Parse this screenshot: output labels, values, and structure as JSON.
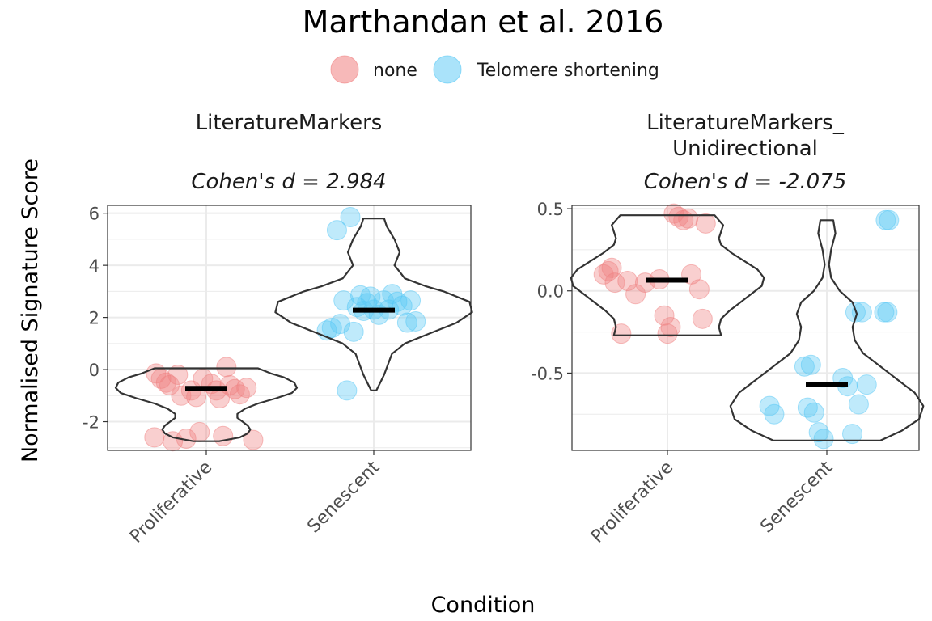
{
  "figure": {
    "title": "Marthandan et al. 2016",
    "xlabel": "Condition",
    "ylabel": "Normalised Signature Score"
  },
  "legend": {
    "position": "top",
    "entries": [
      {
        "label": "none",
        "color": "#F08080"
      },
      {
        "label": "Telomere shortening",
        "color": "#56C8F5"
      }
    ]
  },
  "colors": {
    "none": "#F08080",
    "Telomere shortening": "#56C8F5",
    "violin_stroke": "#333333",
    "median_bar": "#000000",
    "grid": "#EBEBEB",
    "panel_border": "#333333"
  },
  "chart_data": [
    {
      "type": "scatter",
      "facet_title": [
        "LiteratureMarkers"
      ],
      "subtitle": "Cohen's d = 2.984",
      "categories": [
        "Proliferative",
        "Senescent"
      ],
      "ylim": [
        -3.1,
        6.3
      ],
      "yticks": [
        6,
        4,
        2,
        0,
        -2
      ],
      "ytick_labels": [
        "6",
        "4",
        "2",
        "0",
        "-2"
      ],
      "grid": true,
      "medians": [
        -0.72,
        2.28
      ],
      "violins": [
        {
          "category": "Proliferative",
          "ymin": -2.75,
          "ymax": 0.05,
          "profile": [
            [
              -2.75,
              0.05
            ],
            [
              -2.6,
              0.13
            ],
            [
              -2.45,
              0.16
            ],
            [
              -2.3,
              0.17
            ],
            [
              -2.15,
              0.16
            ],
            [
              -2.0,
              0.14
            ],
            [
              -1.85,
              0.12
            ],
            [
              -1.7,
              0.12
            ],
            [
              -1.5,
              0.15
            ],
            [
              -1.3,
              0.2
            ],
            [
              -1.1,
              0.27
            ],
            [
              -0.9,
              0.33
            ],
            [
              -0.7,
              0.35
            ],
            [
              -0.5,
              0.34
            ],
            [
              -0.3,
              0.3
            ],
            [
              -0.15,
              0.25
            ],
            [
              0.05,
              0.2
            ]
          ]
        },
        {
          "category": "Senescent",
          "ymin": -0.8,
          "ymax": 5.8,
          "profile": [
            [
              -0.8,
              0.01
            ],
            [
              -0.5,
              0.025
            ],
            [
              -0.2,
              0.04
            ],
            [
              0.2,
              0.055
            ],
            [
              0.6,
              0.07
            ],
            [
              1.0,
              0.12
            ],
            [
              1.4,
              0.22
            ],
            [
              1.8,
              0.32
            ],
            [
              2.2,
              0.38
            ],
            [
              2.6,
              0.37
            ],
            [
              3.0,
              0.27
            ],
            [
              3.2,
              0.2
            ],
            [
              3.5,
              0.12
            ],
            [
              4.0,
              0.08
            ],
            [
              4.5,
              0.1
            ],
            [
              5.0,
              0.08
            ],
            [
              5.5,
              0.05
            ],
            [
              5.8,
              0.04
            ]
          ]
        }
      ],
      "points": [
        {
          "category": "Proliferative",
          "group": "none",
          "jitter": [
            -0.31,
            -0.3,
            -0.27,
            -0.24,
            -0.22,
            -0.2,
            -0.17,
            -0.15,
            -0.12,
            -0.09,
            -0.06,
            -0.04,
            -0.02,
            0.03,
            0.06,
            0.08,
            0.1,
            0.12,
            0.14,
            0.17,
            0.2,
            0.24,
            0.28
          ],
          "y": [
            -2.6,
            -0.15,
            -0.35,
            -0.5,
            -0.6,
            -2.75,
            -0.2,
            -1.0,
            -2.65,
            -0.8,
            -1.05,
            -2.4,
            -0.35,
            -0.55,
            -0.8,
            -1.1,
            -2.55,
            0.1,
            -0.6,
            -0.75,
            -0.95,
            -0.7,
            -2.7
          ]
        },
        {
          "category": "Senescent",
          "group": "Telomere shortening",
          "jitter": [
            -0.28,
            -0.25,
            -0.22,
            -0.2,
            -0.18,
            -0.16,
            -0.14,
            -0.12,
            -0.1,
            -0.08,
            -0.06,
            -0.04,
            -0.02,
            0.0,
            0.03,
            0.06,
            0.09,
            0.11,
            0.14,
            0.17,
            0.2,
            0.22,
            0.25
          ],
          "y": [
            1.5,
            1.6,
            5.35,
            1.75,
            2.65,
            -0.8,
            5.85,
            1.45,
            2.4,
            2.85,
            2.25,
            2.55,
            2.8,
            2.3,
            2.1,
            2.65,
            2.3,
            2.9,
            2.6,
            2.45,
            1.8,
            2.65,
            1.85
          ]
        }
      ]
    },
    {
      "type": "scatter",
      "facet_title": [
        "LiteratureMarkers_",
        "Unidirectional"
      ],
      "subtitle": "Cohen's d = -2.075",
      "categories": [
        "Proliferative",
        "Senescent"
      ],
      "ylim": [
        -0.97,
        0.52
      ],
      "yticks": [
        0.5,
        0.0,
        -0.5
      ],
      "ytick_labels": [
        "0.5",
        "0.0",
        "-0.5"
      ],
      "grid": true,
      "medians": [
        0.065,
        -0.57
      ],
      "violins": [
        {
          "category": "Proliferative",
          "ymin": -0.27,
          "ymax": 0.46,
          "profile": [
            [
              -0.27,
              0.25
            ],
            [
              -0.22,
              0.24
            ],
            [
              -0.17,
              0.25
            ],
            [
              -0.12,
              0.29
            ],
            [
              -0.07,
              0.34
            ],
            [
              -0.02,
              0.39
            ],
            [
              0.03,
              0.44
            ],
            [
              0.08,
              0.45
            ],
            [
              0.13,
              0.42
            ],
            [
              0.18,
              0.36
            ],
            [
              0.23,
              0.3
            ],
            [
              0.28,
              0.25
            ],
            [
              0.32,
              0.24
            ],
            [
              0.36,
              0.25
            ],
            [
              0.4,
              0.26
            ],
            [
              0.43,
              0.24
            ],
            [
              0.46,
              0.22
            ]
          ]
        },
        {
          "category": "Senescent",
          "ymin": -0.91,
          "ymax": 0.43,
          "profile": [
            [
              -0.91,
              0.25
            ],
            [
              -0.85,
              0.35
            ],
            [
              -0.78,
              0.43
            ],
            [
              -0.7,
              0.45
            ],
            [
              -0.62,
              0.41
            ],
            [
              -0.54,
              0.33
            ],
            [
              -0.46,
              0.25
            ],
            [
              -0.38,
              0.17
            ],
            [
              -0.3,
              0.13
            ],
            [
              -0.22,
              0.12
            ],
            [
              -0.14,
              0.14
            ],
            [
              -0.07,
              0.12
            ],
            [
              0.0,
              0.06
            ],
            [
              0.08,
              0.02
            ],
            [
              0.16,
              0.01
            ],
            [
              0.25,
              0.02
            ],
            [
              0.35,
              0.04
            ],
            [
              0.43,
              0.03
            ]
          ]
        }
      ],
      "points": [
        {
          "category": "Proliferative",
          "group": "none",
          "jitter": [
            -0.4,
            -0.37,
            -0.35,
            -0.33,
            -0.29,
            -0.25,
            -0.2,
            -0.14,
            -0.05,
            -0.02,
            0.0,
            0.02,
            0.04,
            0.07,
            0.1,
            0.13,
            0.15,
            0.2,
            0.22,
            0.24
          ],
          "y": [
            0.1,
            0.12,
            0.14,
            0.05,
            -0.26,
            0.06,
            -0.02,
            0.05,
            0.07,
            -0.15,
            -0.26,
            -0.22,
            0.47,
            0.45,
            0.43,
            0.44,
            0.1,
            0.01,
            -0.17,
            0.41
          ]
        },
        {
          "category": "Senescent",
          "group": "Telomere shortening",
          "jitter": [
            -0.36,
            -0.33,
            -0.14,
            -0.12,
            -0.1,
            -0.08,
            -0.05,
            -0.02,
            0.1,
            0.13,
            0.16,
            0.18,
            0.2,
            0.22,
            0.25,
            0.36,
            0.37,
            0.38,
            0.39
          ],
          "y": [
            -0.7,
            -0.75,
            -0.46,
            -0.71,
            -0.45,
            -0.74,
            -0.86,
            -0.9,
            -0.53,
            -0.58,
            -0.87,
            -0.13,
            -0.69,
            -0.13,
            -0.57,
            -0.13,
            0.43,
            -0.13,
            0.43
          ]
        }
      ]
    }
  ]
}
